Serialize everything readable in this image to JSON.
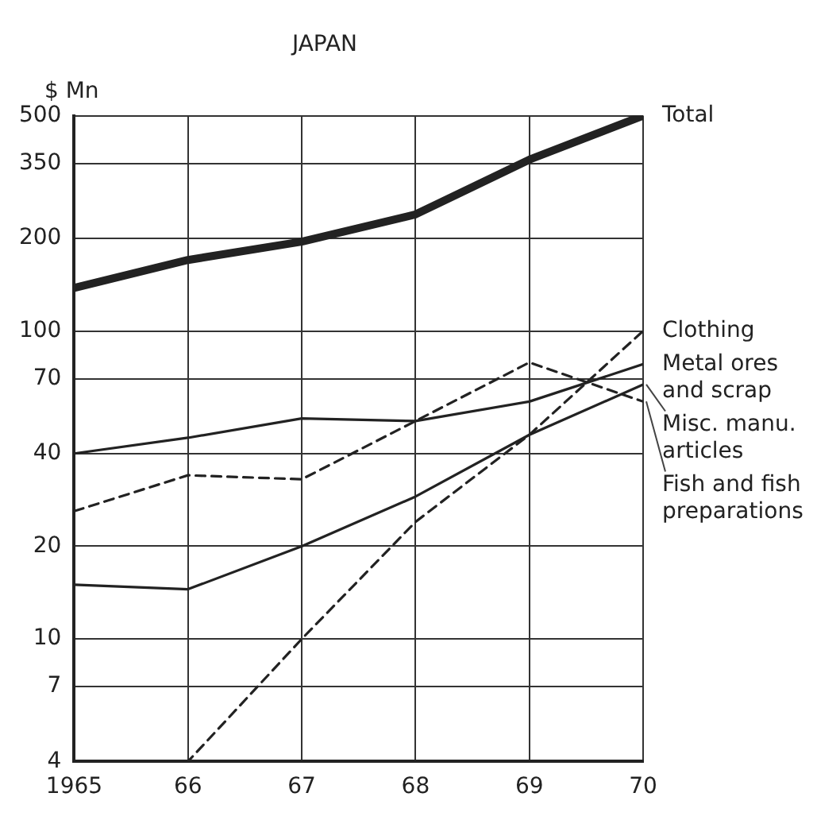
{
  "chart_data": {
    "type": "line",
    "title": "JAPAN",
    "ylabel": "$ Mn",
    "x": [
      1965,
      1966,
      1967,
      1968,
      1969,
      1970
    ],
    "xlim": [
      1965,
      1970
    ],
    "xticks": [
      1965,
      {
        "value": 1966,
        "label": "66"
      },
      {
        "value": 1967,
        "label": "67"
      },
      {
        "value": 1968,
        "label": "68"
      },
      {
        "value": 1969,
        "label": "69"
      },
      {
        "value": 1970,
        "label": "70"
      }
    ],
    "ylim": [
      4,
      500
    ],
    "yticks": [
      4,
      7,
      10,
      20,
      40,
      70,
      100,
      200,
      350,
      500
    ],
    "log": true,
    "grid": true,
    "legend": false,
    "marker": "none",
    "series": [
      {
        "name": "Total",
        "color": "#222222",
        "values": [
          138,
          170,
          195,
          239,
          360,
          500
        ]
      },
      {
        "name": "Clothing",
        "color": "#222222",
        "line_style": "dashed",
        "values": [
          4,
          4,
          10,
          24,
          46,
          100
        ]
      },
      {
        "name": "Metal ores and scrap",
        "color": "#222222",
        "values": [
          40,
          45,
          52,
          51,
          59,
          78
        ]
      },
      {
        "name": "Misc. manu. articles",
        "color": "#222222",
        "values": [
          15,
          14.5,
          20,
          29,
          46,
          67
        ]
      },
      {
        "name": "Fish and fish preparations",
        "color": "#222222",
        "line_style": "dashed",
        "values": [
          26,
          34,
          33,
          51,
          79,
          59
        ]
      }
    ]
  }
}
